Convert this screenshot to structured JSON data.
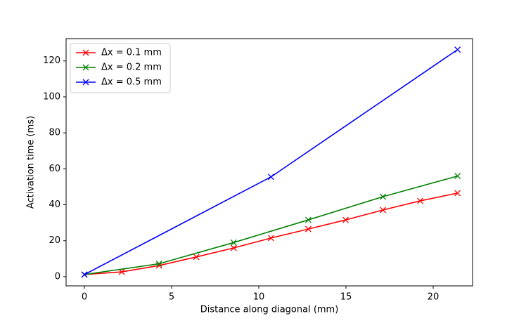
{
  "chart_data": {
    "type": "line",
    "xlabel": "Distance along diagonal (mm)",
    "ylabel": "Activation time (ms)",
    "xlim": [
      -1.05,
      22.26
    ],
    "ylim": [
      -5.1,
      132.4
    ],
    "xticks": [
      0,
      5,
      10,
      15,
      20
    ],
    "yticks": [
      0,
      20,
      40,
      60,
      80,
      100,
      120
    ],
    "legend": "upper left",
    "marker": "x",
    "series": [
      {
        "name": "Δx = 0.1 mm",
        "color": "#ff0000",
        "x": [
          0,
          2.14,
          4.28,
          6.42,
          8.56,
          10.7,
          12.84,
          14.98,
          17.12,
          19.26,
          21.4
        ],
        "values": [
          1.2,
          2.7,
          6.2,
          11,
          16,
          21.5,
          26.5,
          31.6,
          37.1,
          42.2,
          46.5
        ]
      },
      {
        "name": "Δx = 0.2 mm",
        "color": "#008000",
        "x": [
          0,
          4.28,
          8.56,
          12.84,
          17.12,
          21.4
        ],
        "values": [
          1.2,
          7.2,
          19,
          31.6,
          44.5,
          56
        ]
      },
      {
        "name": "Δx = 0.5 mm",
        "color": "#0000ff",
        "x": [
          0,
          10.7,
          21.4
        ],
        "values": [
          1.2,
          55.5,
          126.3
        ]
      }
    ]
  }
}
